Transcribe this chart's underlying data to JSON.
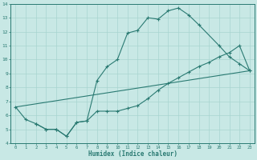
{
  "xlabel": "Humidex (Indice chaleur)",
  "bg_color": "#c8e8e5",
  "line_color": "#2a7a72",
  "grid_color": "#a8d4d0",
  "xlim": [
    -0.5,
    23.5
  ],
  "ylim": [
    4,
    14
  ],
  "xticks": [
    0,
    1,
    2,
    3,
    4,
    5,
    6,
    7,
    8,
    9,
    10,
    11,
    12,
    13,
    14,
    15,
    16,
    17,
    18,
    19,
    20,
    21,
    22,
    23
  ],
  "yticks": [
    4,
    5,
    6,
    7,
    8,
    9,
    10,
    11,
    12,
    13,
    14
  ],
  "curve1_x": [
    0,
    1,
    2,
    3,
    4,
    5,
    6,
    7,
    8,
    9,
    10,
    11,
    12,
    13,
    14,
    15,
    16,
    17,
    18,
    20,
    21,
    22,
    23
  ],
  "curve1_y": [
    6.6,
    5.7,
    5.4,
    5.0,
    5.0,
    4.5,
    5.5,
    5.6,
    8.5,
    9.5,
    10.0,
    11.9,
    12.1,
    13.0,
    12.9,
    13.5,
    13.7,
    13.2,
    12.5,
    11.0,
    10.2,
    9.7,
    9.2
  ],
  "curve2_x": [
    2,
    3,
    4,
    5,
    6,
    7,
    8,
    9,
    10,
    11,
    12,
    13,
    14,
    15,
    16,
    17,
    18,
    19,
    20,
    21,
    22,
    23
  ],
  "curve2_y": [
    5.4,
    5.0,
    5.0,
    4.5,
    5.5,
    5.6,
    6.3,
    6.3,
    6.3,
    6.5,
    6.7,
    7.2,
    7.8,
    8.3,
    8.7,
    9.1,
    9.5,
    9.8,
    10.2,
    10.5,
    11.0,
    9.2
  ],
  "line3_x": [
    0,
    23
  ],
  "line3_y": [
    6.6,
    9.2
  ]
}
